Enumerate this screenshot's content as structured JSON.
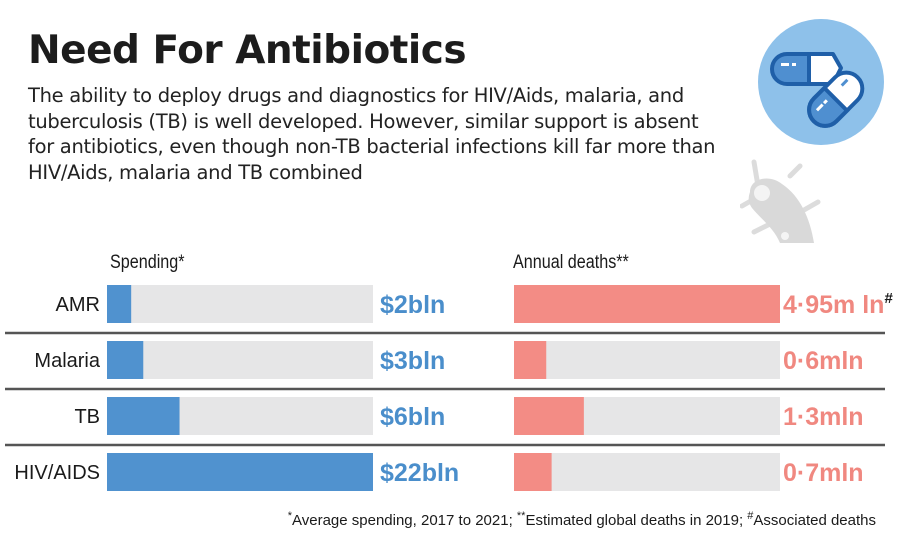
{
  "header": {
    "title": "Need For Antibiotics",
    "subtitle": "The ability to deploy drugs and diagnostics for HIV/Aids, malaria, and tuberculosis (TB) is well developed. However, similar support is absent for antibiotics, even though non-TB bacterial infections kill far more than HIV/Aids, malaria and TB combined"
  },
  "icons": {
    "pills": "pills-icon",
    "bacteria": "bacteria-icon"
  },
  "colors": {
    "spending": "#5092cf",
    "deaths": "#f38c85",
    "track": "#e6e6e7",
    "divider": "#555555",
    "pill_circle": "#8ec1ea",
    "pill_dark": "#1f5fa8",
    "bacteria": "#d9d9d9"
  },
  "chart_data": {
    "type": "bar",
    "orientation": "horizontal",
    "categories": [
      "AMR",
      "Malaria",
      "TB",
      "HIV/AIDS"
    ],
    "series": [
      {
        "name": "Spending*",
        "unit": "$ bln",
        "values": [
          2,
          3,
          6,
          22
        ],
        "labels": [
          "$2bln",
          "$3bln",
          "$6bln",
          "$22bln"
        ],
        "max": 22
      },
      {
        "name": "Annual deaths**",
        "unit": "mln",
        "values": [
          4.95,
          0.6,
          1.3,
          0.7
        ],
        "labels": [
          "4·95m ln",
          "0·6mln",
          "1·3mln",
          "0·7mln"
        ],
        "label_marks": [
          "#",
          "",
          "",
          ""
        ],
        "max": 4.95
      }
    ],
    "title": "Need For Antibiotics",
    "xlabel": "",
    "ylabel": "",
    "grid": false,
    "legend": "none"
  },
  "footnote": {
    "mark1": "*",
    "text1": "Average spending, 2017 to 2021; ",
    "mark2": "**",
    "text2": "Estimated global deaths in 2019; ",
    "mark3": "#",
    "text3": "Associated deaths"
  }
}
